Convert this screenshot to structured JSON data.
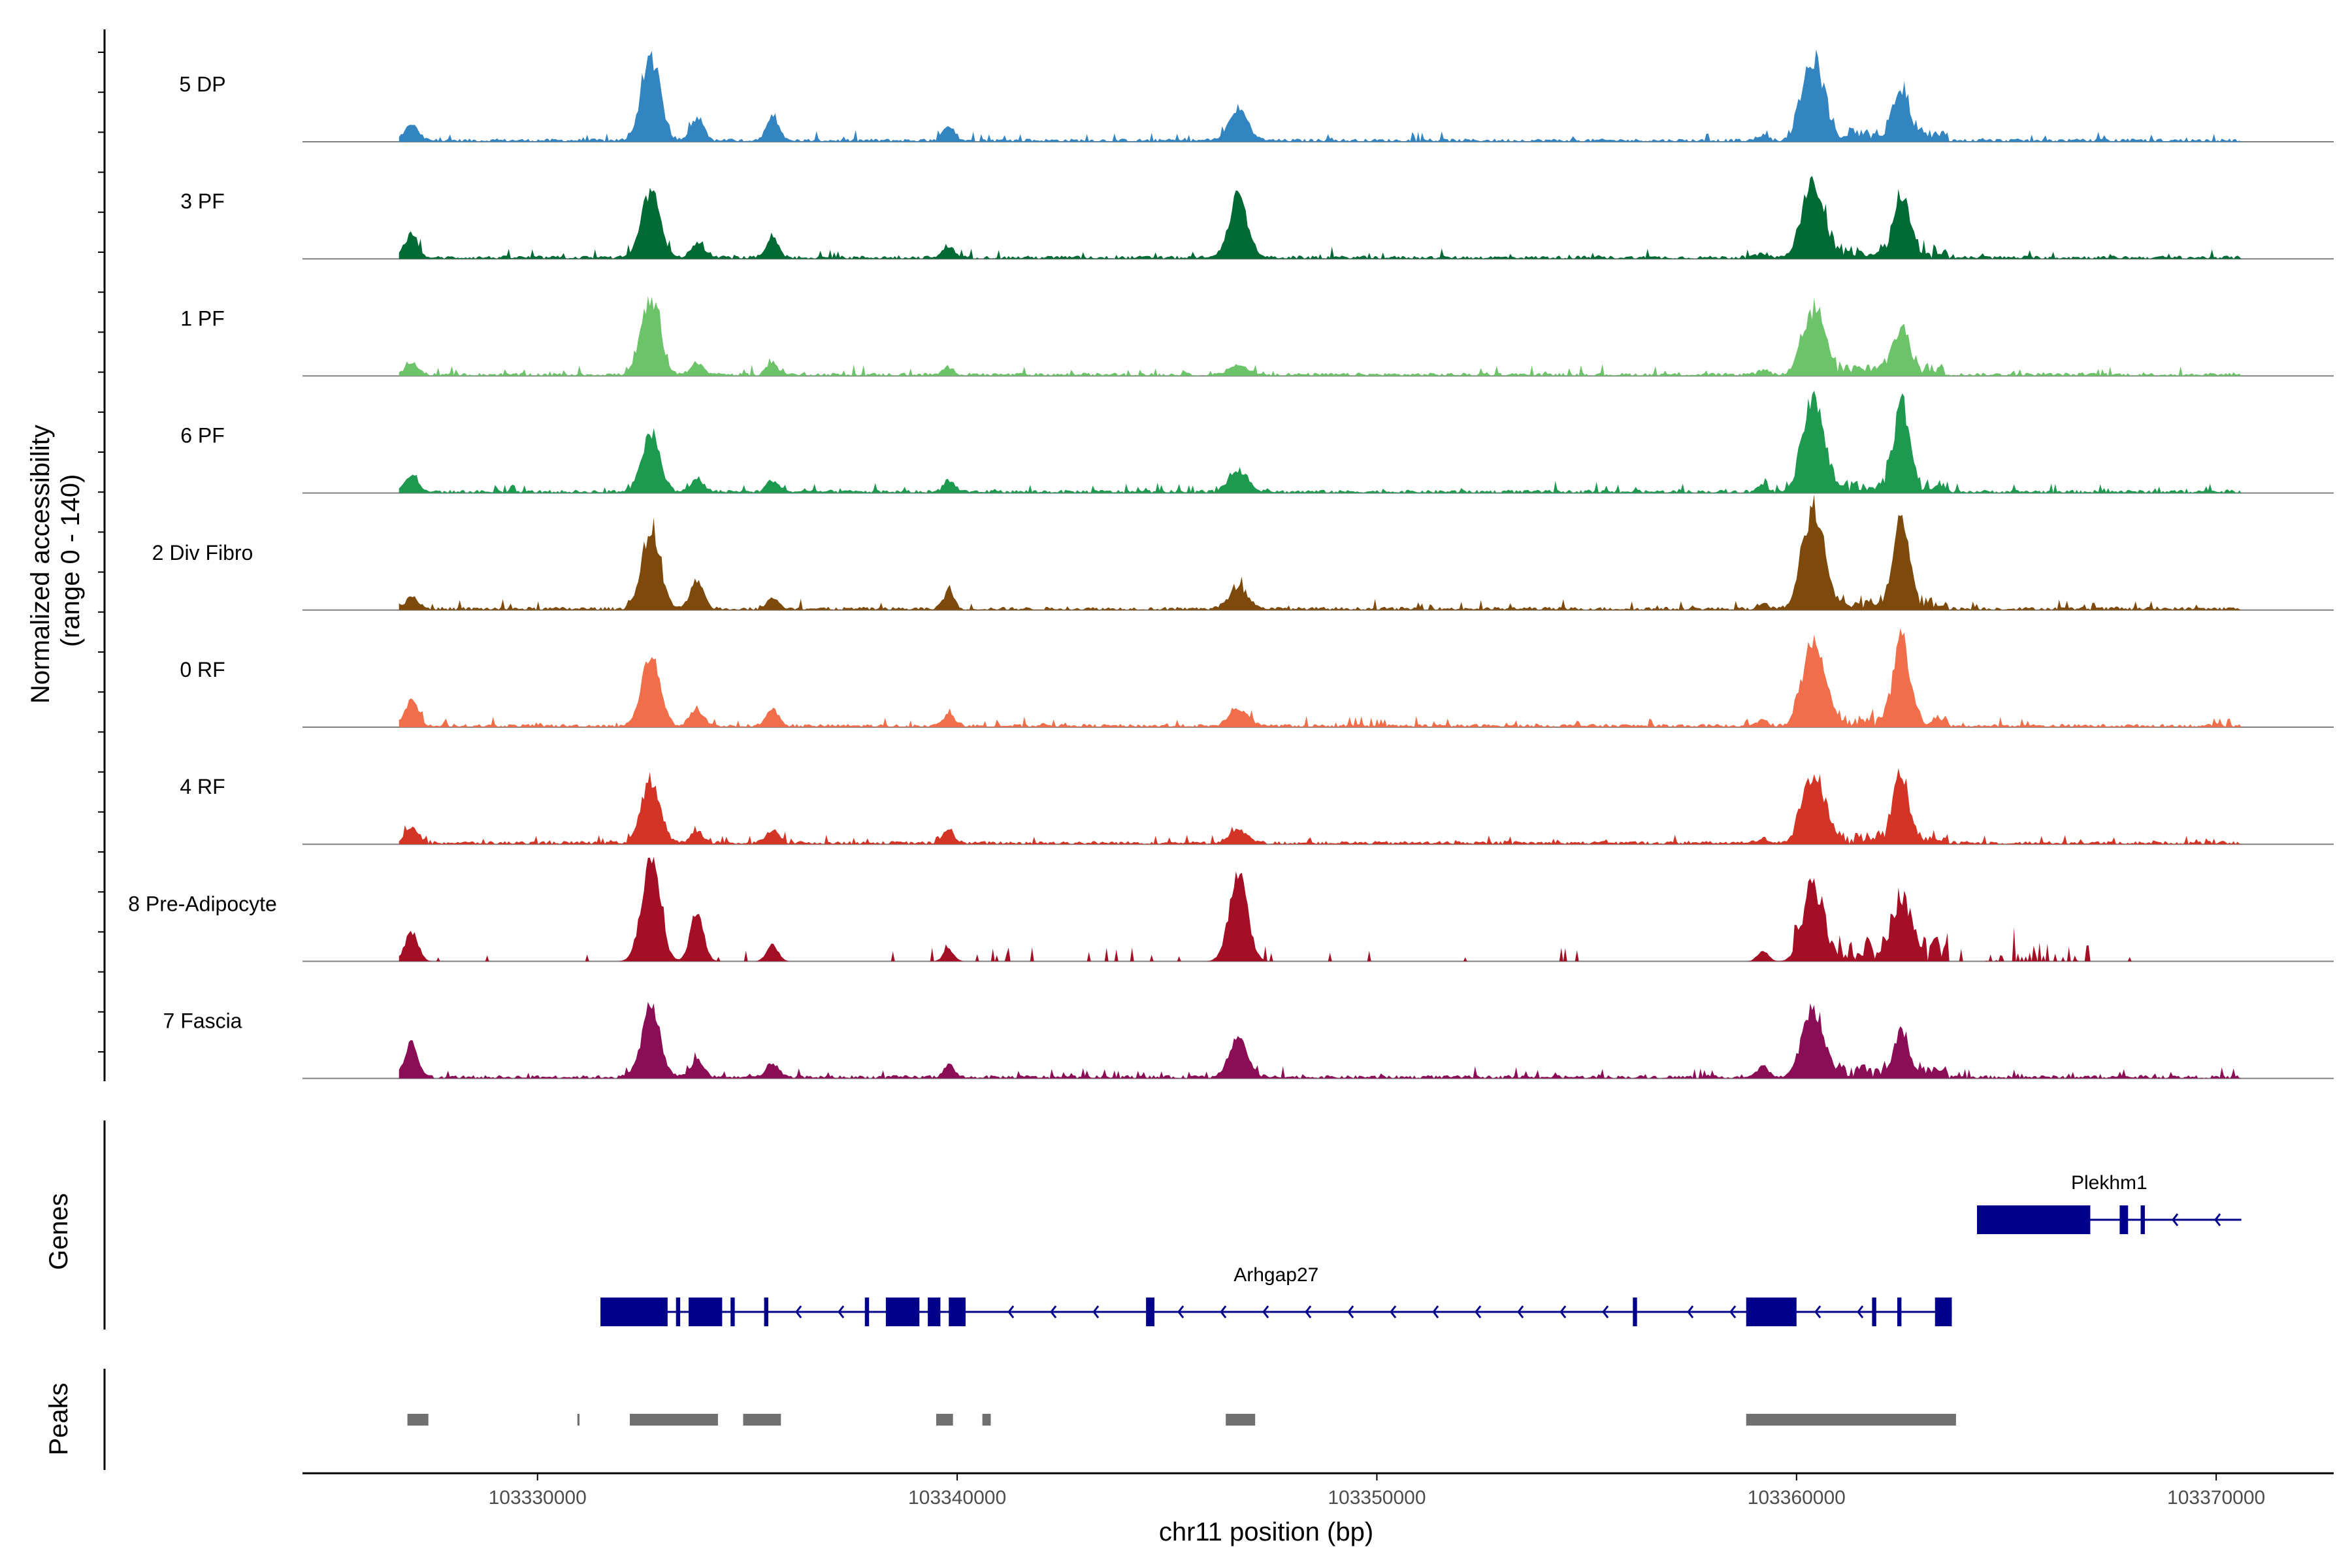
{
  "chart_data": {
    "type": "area",
    "y_axis_title_line1": "Normalized accessibility",
    "y_axis_title_line2": "(range 0 - 140)",
    "ylim": [
      0,
      140
    ],
    "xlabel": "chr11 position (bp)",
    "xlim": [
      103324400,
      103372800
    ],
    "x_ticks": [
      103330000,
      103340000,
      103350000,
      103360000,
      103370000
    ],
    "x_tick_labels": [
      "103330000",
      "103340000",
      "103350000",
      "103360000",
      "103370000"
    ],
    "track_range_bp": [
      103326700,
      103370600
    ],
    "peak_positions_bp": [
      103327000,
      103332700,
      103333800,
      103335600,
      103339800,
      103346700,
      103359200,
      103360400,
      103362500
    ],
    "tracks": [
      {
        "name": "5 DP",
        "color": "#3385C1",
        "heights": [
          28,
          148,
          38,
          46,
          28,
          56,
          10,
          135,
          82,
          32
        ],
        "sparse": false
      },
      {
        "name": "3 PF",
        "color": "#006A35",
        "heights": [
          42,
          118,
          24,
          34,
          20,
          106,
          8,
          120,
          96,
          32
        ],
        "sparse": false
      },
      {
        "name": "1 PF",
        "color": "#6DC36A",
        "heights": [
          20,
          138,
          22,
          20,
          14,
          16,
          8,
          112,
          76,
          32
        ],
        "sparse": false
      },
      {
        "name": "6 PF",
        "color": "#1D9A4F",
        "heights": [
          30,
          102,
          20,
          20,
          22,
          40,
          12,
          152,
          152,
          40
        ],
        "sparse": false
      },
      {
        "name": "2 Div Fibro",
        "color": "#7E4A0B",
        "heights": [
          22,
          136,
          48,
          18,
          32,
          40,
          10,
          168,
          146,
          38
        ],
        "sparse": false
      },
      {
        "name": "0 RF",
        "color": "#F06F4A",
        "heights": [
          48,
          122,
          30,
          30,
          22,
          30,
          10,
          142,
          142,
          44
        ],
        "sparse": false
      },
      {
        "name": "4 RF",
        "color": "#D33425",
        "heights": [
          28,
          110,
          20,
          24,
          24,
          22,
          8,
          112,
          110,
          32
        ],
        "sparse": false
      },
      {
        "name": "8 Pre-Adipocyte",
        "color": "#A50F26",
        "heights": [
          52,
          180,
          90,
          28,
          22,
          148,
          20,
          112,
          102,
          60
        ],
        "sparse": true
      },
      {
        "name": "7 Fascia",
        "color": "#8A0D56",
        "heights": [
          60,
          120,
          28,
          24,
          22,
          66,
          20,
          110,
          66,
          46
        ],
        "sparse": false
      }
    ],
    "genes_label": "Genes",
    "genes": [
      {
        "name": "Plekhm1",
        "start": 103364300,
        "end": 103370600,
        "strand": "-",
        "exons": [
          [
            103364300,
            103367000
          ],
          [
            103367700,
            103367900
          ],
          [
            103368200,
            103368300
          ]
        ]
      },
      {
        "name": "Arhgap27",
        "start": 103331500,
        "end": 103363700,
        "strand": "-",
        "exons": [
          [
            103331500,
            103333100
          ],
          [
            103333300,
            103333400
          ],
          [
            103333600,
            103334400
          ],
          [
            103334600,
            103334700
          ],
          [
            103335400,
            103335500
          ],
          [
            103337800,
            103337900
          ],
          [
            103338300,
            103339100
          ],
          [
            103339300,
            103339600
          ],
          [
            103339800,
            103340200
          ],
          [
            103344500,
            103344700
          ],
          [
            103356100,
            103356200
          ],
          [
            103358800,
            103360000
          ],
          [
            103361800,
            103361900
          ],
          [
            103362400,
            103362500
          ],
          [
            103363300,
            103363700
          ]
        ]
      }
    ],
    "peaks_label": "Peaks",
    "peaks": [
      [
        103326900,
        103327400
      ],
      [
        103330950,
        103331000
      ],
      [
        103332200,
        103334300
      ],
      [
        103334900,
        103335800
      ],
      [
        103339500,
        103339900
      ],
      [
        103340600,
        103340800
      ],
      [
        103346400,
        103347100
      ],
      [
        103358800,
        103363800
      ]
    ]
  }
}
